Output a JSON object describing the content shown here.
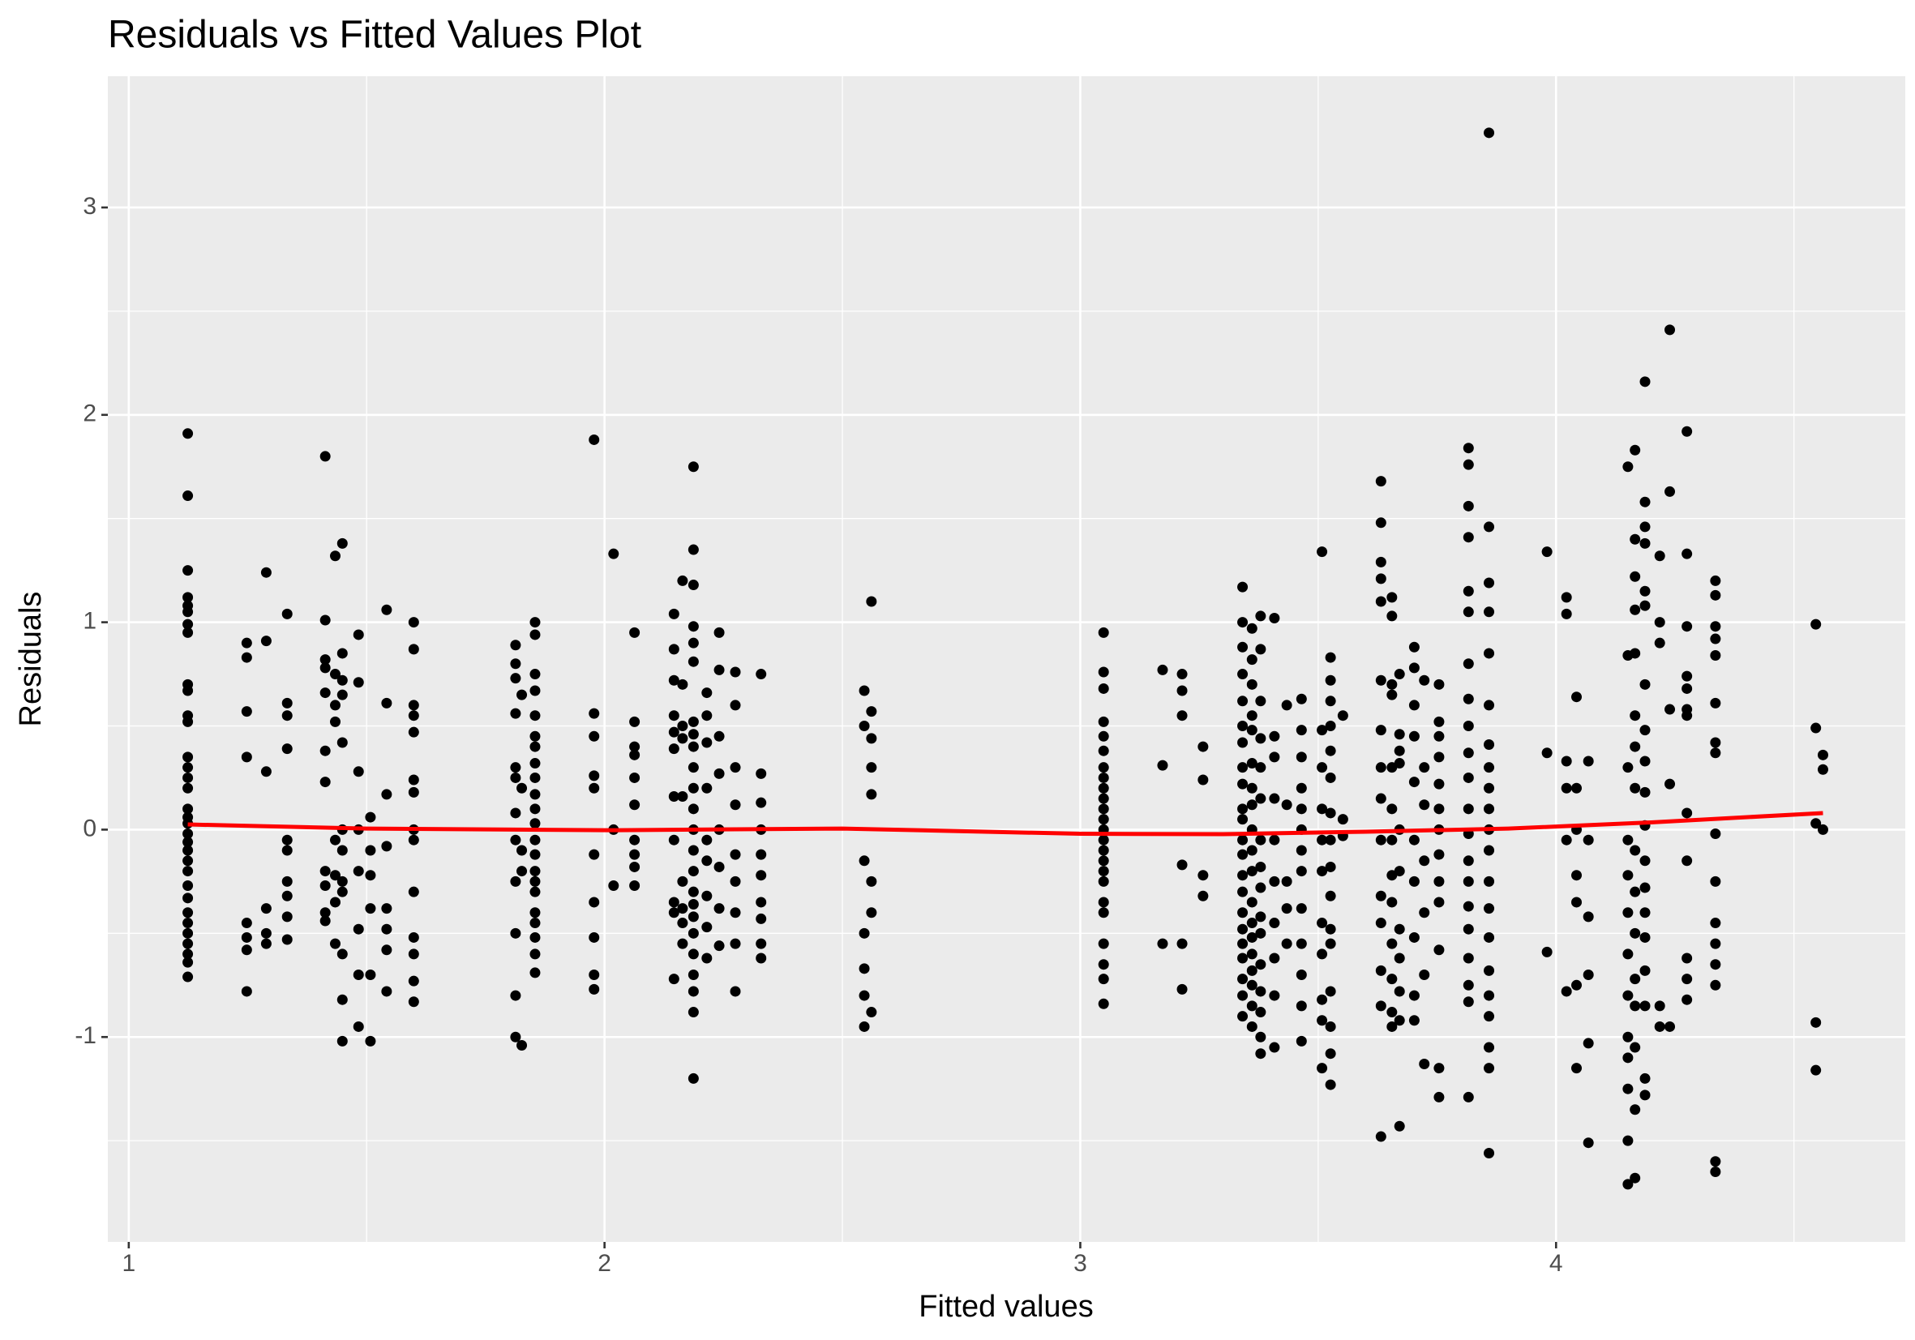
{
  "chart_data": {
    "type": "scatter",
    "title": "Residuals vs Fitted Values Plot",
    "x_label": "Fitted values",
    "y_label": "Residuals",
    "xlim": [
      0.956,
      4.734
    ],
    "ylim": [
      -1.988,
      3.633
    ],
    "xticks": [
      1,
      2,
      3,
      4
    ],
    "yticks": [
      -1,
      0,
      1,
      2,
      3
    ],
    "grid": true,
    "minor_grid": true,
    "point_color": "#000000",
    "panel_color": "#ebebeb",
    "series": [
      {
        "x": 1.124,
        "values": [
          1.91,
          1.61,
          1.25,
          1.12,
          1.08,
          1.05,
          0.99,
          0.95,
          0.7,
          0.67,
          0.55,
          0.52,
          0.35,
          0.3,
          0.25,
          0.2,
          0.1,
          0.06,
          0.03,
          -0.02,
          -0.06,
          -0.1,
          -0.15,
          -0.2,
          -0.27,
          -0.33,
          -0.4,
          -0.45,
          -0.5,
          -0.55,
          -0.6,
          -0.64,
          -0.71
        ]
      },
      {
        "x": 1.248,
        "values": [
          0.9,
          0.83,
          0.57,
          0.35,
          -0.45,
          -0.52,
          -0.58,
          -0.78
        ]
      },
      {
        "x": 1.289,
        "values": [
          1.24,
          0.91,
          0.28,
          -0.38,
          -0.5,
          -0.55
        ]
      },
      {
        "x": 1.333,
        "values": [
          1.04,
          0.61,
          0.55,
          0.39,
          -0.05,
          -0.1,
          -0.25,
          -0.32,
          -0.42,
          -0.53
        ]
      },
      {
        "x": 1.413,
        "values": [
          1.8,
          1.01,
          0.82,
          0.78,
          0.66,
          0.38,
          0.23,
          -0.2,
          -0.27,
          -0.4,
          -0.44
        ]
      },
      {
        "x": 1.434,
        "values": [
          1.32,
          0.75,
          0.6,
          0.52,
          -0.05,
          -0.22,
          -0.35,
          -0.55
        ]
      },
      {
        "x": 1.449,
        "values": [
          1.38,
          0.85,
          0.72,
          0.65,
          0.42,
          0.0,
          -0.1,
          -0.25,
          -0.3,
          -0.6,
          -0.82,
          -1.02
        ]
      },
      {
        "x": 1.483,
        "values": [
          0.94,
          0.71,
          0.28,
          0.0,
          -0.2,
          -0.48,
          -0.7,
          -0.95
        ]
      },
      {
        "x": 1.508,
        "values": [
          0.06,
          -0.1,
          -0.22,
          -0.38,
          -0.7,
          -1.02
        ]
      },
      {
        "x": 1.542,
        "values": [
          1.06,
          0.61,
          0.17,
          -0.08,
          -0.38,
          -0.48,
          -0.58,
          -0.78
        ]
      },
      {
        "x": 1.599,
        "values": [
          1.0,
          0.87,
          0.6,
          0.55,
          0.47,
          0.24,
          0.18,
          0.0,
          -0.05,
          -0.3,
          -0.52,
          -0.6,
          -0.73,
          -0.83
        ]
      },
      {
        "x": 1.813,
        "values": [
          0.89,
          0.8,
          0.73,
          0.56,
          0.3,
          0.25,
          0.08,
          -0.05,
          -0.25,
          -0.5,
          -0.8,
          -1.0
        ]
      },
      {
        "x": 1.826,
        "values": [
          0.65,
          0.2,
          -0.1,
          -0.2,
          -1.04
        ]
      },
      {
        "x": 1.854,
        "values": [
          1.0,
          0.94,
          0.75,
          0.67,
          0.55,
          0.45,
          0.4,
          0.32,
          0.25,
          0.17,
          0.1,
          0.03,
          -0.05,
          -0.12,
          -0.2,
          -0.25,
          -0.3,
          -0.4,
          -0.45,
          -0.52,
          -0.6,
          -0.69
        ]
      },
      {
        "x": 1.978,
        "values": [
          1.88,
          0.56,
          0.45,
          0.26,
          0.2,
          -0.12,
          -0.35,
          -0.52,
          -0.7,
          -0.77
        ]
      },
      {
        "x": 2.019,
        "values": [
          1.33,
          0.0,
          -0.27
        ]
      },
      {
        "x": 2.063,
        "values": [
          0.95,
          0.52,
          0.4,
          0.36,
          0.25,
          0.12,
          -0.05,
          -0.12,
          -0.18,
          -0.27
        ]
      },
      {
        "x": 2.146,
        "values": [
          1.04,
          0.87,
          0.72,
          0.55,
          0.47,
          0.39,
          0.16,
          -0.05,
          -0.35,
          -0.4,
          -0.72
        ]
      },
      {
        "x": 2.164,
        "values": [
          1.2,
          0.7,
          0.5,
          0.44,
          0.16,
          -0.25,
          -0.38,
          -0.45,
          -0.55
        ]
      },
      {
        "x": 2.187,
        "values": [
          1.75,
          1.35,
          1.18,
          0.98,
          0.9,
          0.81,
          0.52,
          0.46,
          0.4,
          0.3,
          0.2,
          0.1,
          0.0,
          -0.1,
          -0.2,
          -0.3,
          -0.36,
          -0.42,
          -0.5,
          -0.6,
          -0.7,
          -0.78,
          -0.88,
          -1.2
        ]
      },
      {
        "x": 2.215,
        "values": [
          0.66,
          0.55,
          0.42,
          0.2,
          -0.05,
          -0.15,
          -0.32,
          -0.47,
          -0.62
        ]
      },
      {
        "x": 2.241,
        "values": [
          0.95,
          0.77,
          0.45,
          0.27,
          0.0,
          -0.18,
          -0.38,
          -0.56
        ]
      },
      {
        "x": 2.275,
        "values": [
          0.76,
          0.6,
          0.3,
          0.12,
          -0.12,
          -0.25,
          -0.4,
          -0.55,
          -0.78
        ]
      },
      {
        "x": 2.329,
        "values": [
          0.75,
          0.27,
          0.13,
          0.0,
          -0.12,
          -0.22,
          -0.35,
          -0.43,
          -0.55,
          -0.62
        ]
      },
      {
        "x": 2.546,
        "values": [
          0.67,
          0.5,
          -0.15,
          -0.5,
          -0.67,
          -0.8,
          -0.95
        ]
      },
      {
        "x": 2.561,
        "values": [
          1.1,
          0.57,
          0.44,
          0.3,
          0.17,
          -0.25,
          -0.4,
          -0.88
        ]
      },
      {
        "x": 3.049,
        "values": [
          0.95,
          0.76,
          0.68,
          0.52,
          0.45,
          0.38,
          0.3,
          0.25,
          0.2,
          0.15,
          0.1,
          0.05,
          0.0,
          -0.05,
          -0.1,
          -0.15,
          -0.2,
          -0.25,
          -0.35,
          -0.4,
          -0.55,
          -0.65,
          -0.72,
          -0.84
        ]
      },
      {
        "x": 3.173,
        "values": [
          0.77,
          0.31,
          -0.55
        ]
      },
      {
        "x": 3.214,
        "values": [
          0.75,
          0.67,
          0.55,
          -0.17,
          -0.55,
          -0.77
        ]
      },
      {
        "x": 3.258,
        "values": [
          0.4,
          0.24,
          -0.22,
          -0.32
        ]
      },
      {
        "x": 3.341,
        "values": [
          1.17,
          1.0,
          0.88,
          0.75,
          0.62,
          0.5,
          0.42,
          0.3,
          0.22,
          0.1,
          0.05,
          -0.05,
          -0.12,
          -0.22,
          -0.3,
          -0.4,
          -0.48,
          -0.55,
          -0.62,
          -0.72,
          -0.8,
          -0.9
        ]
      },
      {
        "x": 3.361,
        "values": [
          0.97,
          0.82,
          0.7,
          0.55,
          0.48,
          0.32,
          0.2,
          0.12,
          0.0,
          -0.1,
          -0.2,
          -0.35,
          -0.45,
          -0.52,
          -0.6,
          -0.68,
          -0.75,
          -0.85,
          -0.95
        ]
      },
      {
        "x": 3.379,
        "values": [
          1.03,
          0.87,
          0.62,
          0.44,
          0.3,
          0.15,
          -0.05,
          -0.18,
          -0.28,
          -0.42,
          -0.5,
          -0.65,
          -0.78,
          -0.88,
          -1.0,
          -1.08
        ]
      },
      {
        "x": 3.408,
        "values": [
          1.02,
          0.45,
          0.35,
          0.15,
          -0.05,
          -0.25,
          -0.45,
          -0.62,
          -0.8,
          -1.05
        ]
      },
      {
        "x": 3.434,
        "values": [
          0.6,
          0.12,
          -0.25,
          -0.38,
          -0.55
        ]
      },
      {
        "x": 3.465,
        "values": [
          0.63,
          0.48,
          0.35,
          0.2,
          0.1,
          0.0,
          -0.1,
          -0.2,
          -0.38,
          -0.55,
          -0.7,
          -0.85,
          -1.02
        ]
      },
      {
        "x": 3.508,
        "values": [
          1.34,
          0.48,
          0.3,
          0.1,
          -0.05,
          -0.2,
          -0.45,
          -0.6,
          -0.82,
          -0.92,
          -1.15
        ]
      },
      {
        "x": 3.526,
        "values": [
          0.83,
          0.72,
          0.62,
          0.5,
          0.38,
          0.25,
          0.08,
          -0.05,
          -0.18,
          -0.32,
          -0.48,
          -0.55,
          -0.78,
          -0.95,
          -1.08,
          -1.23
        ]
      },
      {
        "x": 3.552,
        "values": [
          0.55,
          0.05,
          -0.03
        ]
      },
      {
        "x": 3.632,
        "values": [
          1.68,
          1.48,
          1.29,
          1.21,
          1.1,
          0.72,
          0.48,
          0.3,
          0.15,
          -0.05,
          -0.32,
          -0.45,
          -0.68,
          -0.85,
          -1.48
        ]
      },
      {
        "x": 3.655,
        "values": [
          1.12,
          1.03,
          0.7,
          0.65,
          0.3,
          0.1,
          -0.05,
          -0.22,
          -0.35,
          -0.55,
          -0.72,
          -0.88,
          -0.95
        ]
      },
      {
        "x": 3.671,
        "values": [
          0.75,
          0.46,
          0.38,
          0.32,
          0.0,
          -0.2,
          -0.48,
          -0.62,
          -0.78,
          -0.92,
          -1.43
        ]
      },
      {
        "x": 3.702,
        "values": [
          0.88,
          0.78,
          0.6,
          0.45,
          0.23,
          -0.05,
          -0.25,
          -0.52,
          -0.8,
          -0.92
        ]
      },
      {
        "x": 3.723,
        "values": [
          0.72,
          0.3,
          0.12,
          -0.15,
          -0.4,
          -0.7,
          -1.13
        ]
      },
      {
        "x": 3.754,
        "values": [
          0.7,
          0.52,
          0.45,
          0.35,
          0.22,
          0.1,
          0.0,
          -0.12,
          -0.25,
          -0.35,
          -0.58,
          -1.15,
          -1.29
        ]
      },
      {
        "x": 3.816,
        "values": [
          1.84,
          1.76,
          1.56,
          1.41,
          1.15,
          1.05,
          0.8,
          0.63,
          0.5,
          0.37,
          0.25,
          0.1,
          -0.02,
          -0.15,
          -0.25,
          -0.37,
          -0.48,
          -0.62,
          -0.75,
          -0.83,
          -1.29
        ]
      },
      {
        "x": 3.859,
        "values": [
          3.36,
          1.46,
          1.19,
          1.05,
          0.85,
          0.6,
          0.41,
          0.3,
          0.2,
          0.1,
          0.0,
          -0.1,
          -0.25,
          -0.38,
          -0.52,
          -0.68,
          -0.8,
          -0.9,
          -1.05,
          -1.15,
          -1.56
        ]
      },
      {
        "x": 3.981,
        "values": [
          1.34,
          0.37,
          -0.59
        ]
      },
      {
        "x": 4.022,
        "values": [
          1.12,
          1.04,
          0.33,
          0.2,
          -0.05,
          -0.78
        ]
      },
      {
        "x": 4.043,
        "values": [
          0.64,
          0.2,
          0.0,
          -0.22,
          -0.35,
          -0.75,
          -1.15
        ]
      },
      {
        "x": 4.068,
        "values": [
          0.33,
          -0.05,
          -0.42,
          -0.7,
          -1.03,
          -1.51
        ]
      },
      {
        "x": 4.151,
        "values": [
          1.75,
          0.84,
          0.3,
          -0.05,
          -0.22,
          -0.4,
          -0.6,
          -0.8,
          -1.0,
          -1.1,
          -1.25,
          -1.5,
          -1.71
        ]
      },
      {
        "x": 4.166,
        "values": [
          1.83,
          1.4,
          1.22,
          1.06,
          0.85,
          0.55,
          0.4,
          0.2,
          -0.1,
          -0.3,
          -0.5,
          -0.72,
          -0.85,
          -1.05,
          -1.35,
          -1.68
        ]
      },
      {
        "x": 4.187,
        "values": [
          2.16,
          1.58,
          1.46,
          1.38,
          1.15,
          1.08,
          0.7,
          0.48,
          0.33,
          0.18,
          0.02,
          -0.15,
          -0.28,
          -0.4,
          -0.52,
          -0.68,
          -0.85,
          -1.2,
          -1.28
        ]
      },
      {
        "x": 4.218,
        "values": [
          1.32,
          1.0,
          0.9,
          -0.85,
          -0.95
        ]
      },
      {
        "x": 4.239,
        "values": [
          2.41,
          1.63,
          0.58,
          0.22,
          -0.95
        ]
      },
      {
        "x": 4.275,
        "values": [
          1.92,
          1.33,
          0.98,
          0.74,
          0.68,
          0.58,
          0.55,
          0.08,
          -0.15,
          -0.62,
          -0.72,
          -0.82
        ]
      },
      {
        "x": 4.335,
        "values": [
          1.2,
          1.13,
          0.98,
          0.92,
          0.84,
          0.61,
          0.42,
          0.37,
          -0.02,
          -0.25,
          -0.45,
          -0.55,
          -0.65,
          -0.75,
          -1.6,
          -1.65
        ]
      },
      {
        "x": 4.546,
        "values": [
          0.99,
          0.49,
          0.03,
          -0.93,
          -1.16
        ]
      },
      {
        "x": 4.561,
        "values": [
          0.36,
          0.29,
          0.0
        ]
      }
    ],
    "smooth": {
      "color": "#ff0000",
      "x": [
        1.124,
        1.5,
        2.0,
        2.5,
        3.0,
        3.3,
        3.6,
        3.9,
        4.2,
        4.561
      ],
      "values": [
        0.025,
        0.005,
        -0.003,
        0.005,
        -0.02,
        -0.022,
        -0.01,
        0.005,
        0.035,
        0.08
      ]
    }
  }
}
